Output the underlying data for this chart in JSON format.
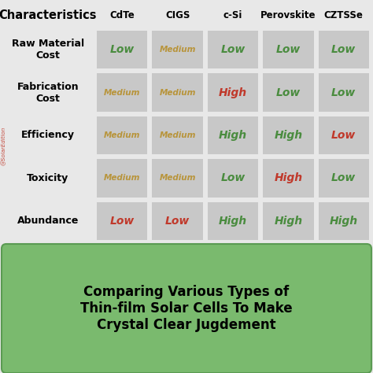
{
  "columns": [
    "Characteristics",
    "CdTe",
    "CIGS",
    "c-Si",
    "Perovskite",
    "CZTSSe"
  ],
  "rows": [
    {
      "label": "Raw Material\nCost",
      "values": [
        "Low",
        "Medium",
        "Low",
        "Low",
        "Low"
      ],
      "colors": [
        "#4a8c3f",
        "#b8943a",
        "#4a8c3f",
        "#4a8c3f",
        "#4a8c3f"
      ]
    },
    {
      "label": "Fabrication\nCost",
      "values": [
        "Medium",
        "Medium",
        "High",
        "Low",
        "Low"
      ],
      "colors": [
        "#b8943a",
        "#b8943a",
        "#c0392b",
        "#4a8c3f",
        "#4a8c3f"
      ]
    },
    {
      "label": "Efficiency",
      "values": [
        "Medium",
        "Medium",
        "High",
        "High",
        "Low"
      ],
      "colors": [
        "#b8943a",
        "#b8943a",
        "#4a8c3f",
        "#4a8c3f",
        "#c0392b"
      ]
    },
    {
      "label": "Toxicity",
      "values": [
        "Medium",
        "Medium",
        "Low",
        "High",
        "Low"
      ],
      "colors": [
        "#b8943a",
        "#b8943a",
        "#4a8c3f",
        "#c0392b",
        "#4a8c3f"
      ]
    },
    {
      "label": "Abundance",
      "values": [
        "Low",
        "Low",
        "High",
        "High",
        "High"
      ],
      "colors": [
        "#c0392b",
        "#c0392b",
        "#4a8c3f",
        "#4a8c3f",
        "#4a8c3f"
      ]
    }
  ],
  "cell_bg": "#c8c8c8",
  "outer_bg": "#e8e8e8",
  "caption_bg": "#7aba6e",
  "caption_border": "#5a9a52",
  "caption_text": "Comparing Various Types of\nThin-film Solar Cells To Make\nCrystal Clear Jugdement",
  "watermark": "@SolarEdition"
}
